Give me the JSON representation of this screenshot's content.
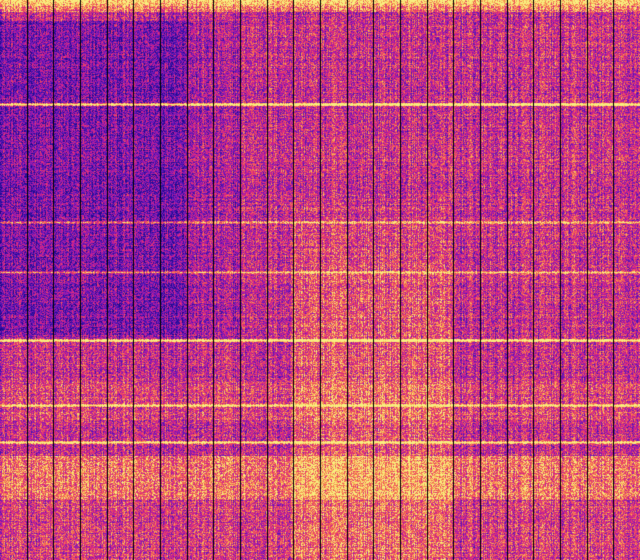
{
  "spectrogram": {
    "colormap": [
      "#1c0a8c",
      "#4a14b4",
      "#8c1ab4",
      "#d2208c",
      "#f0505a",
      "#f8a050",
      "#f8f080"
    ],
    "grid_line_color": "#000000",
    "segment_count": 24
  }
}
